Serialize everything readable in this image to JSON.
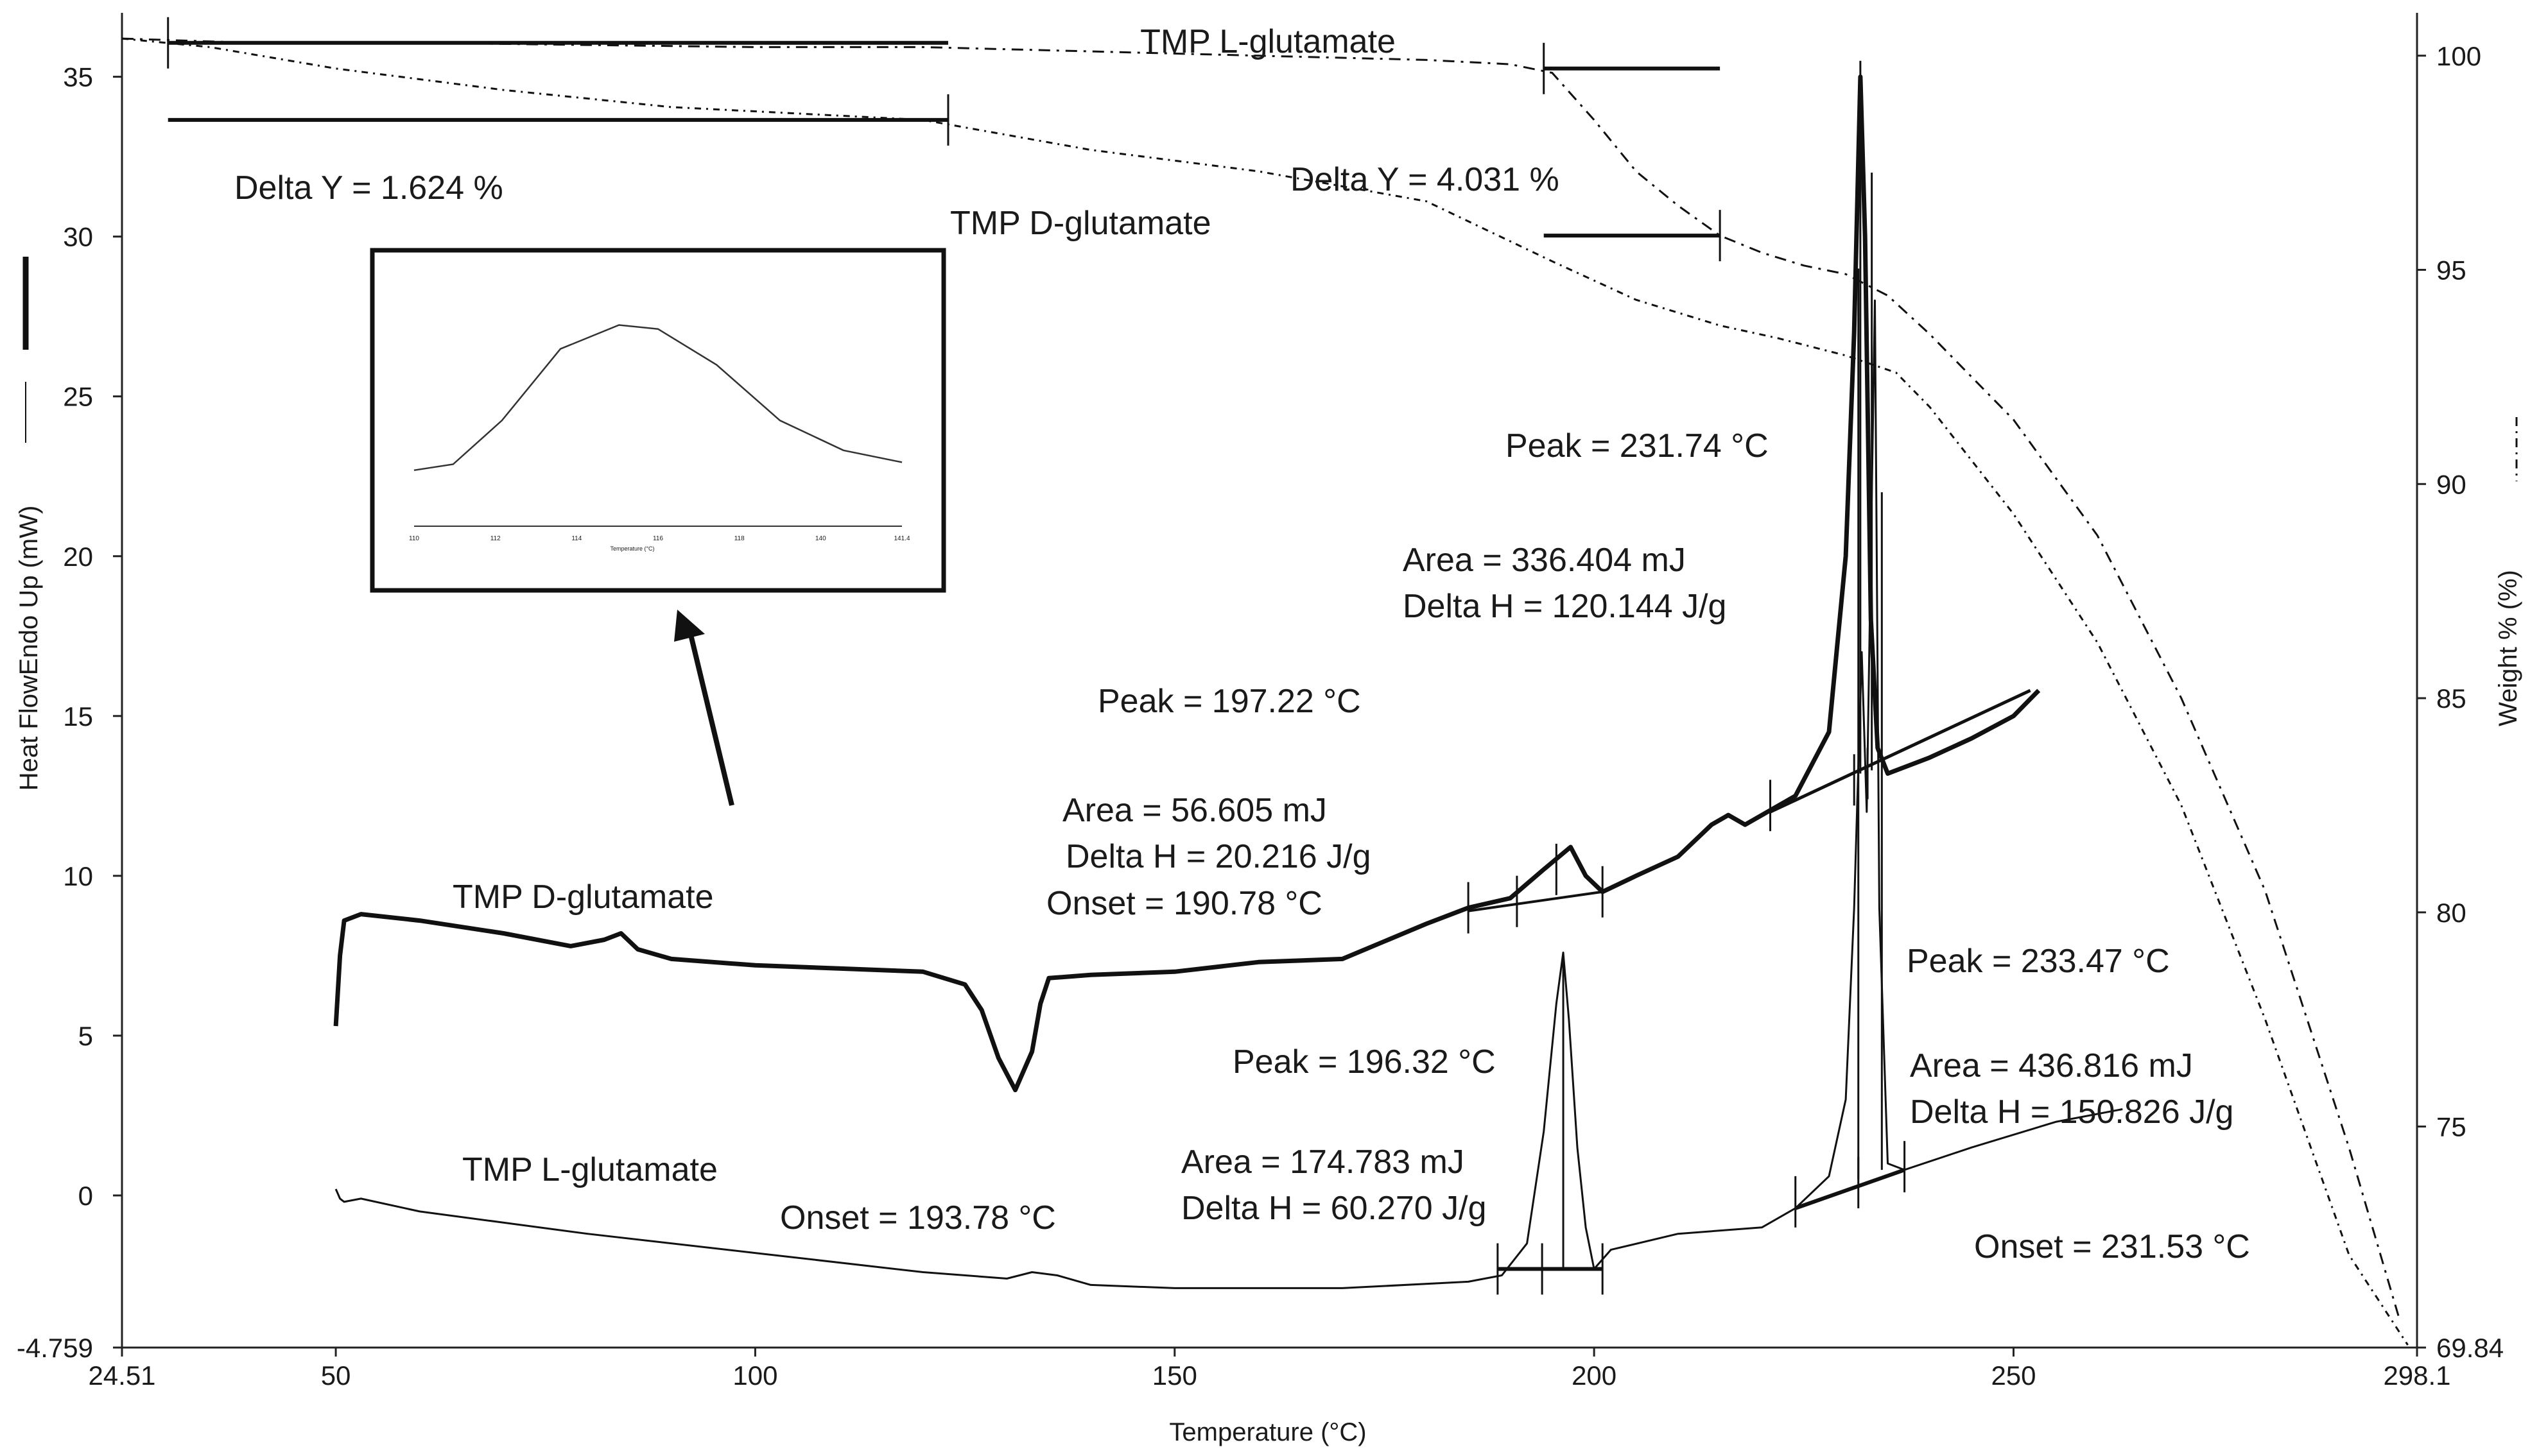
{
  "chart_data": {
    "type": "line",
    "xlabel": "Temperature (°C)",
    "ylabel_left": "Heat FlowEndo Up (mW)",
    "ylabel_right": "Weight % (%)",
    "xlim": [
      24.51,
      298.1
    ],
    "ylim_left": [
      -4.759,
      37
    ],
    "ylim_right": [
      69.84,
      101
    ],
    "x_ticks": [
      "24.51",
      "50",
      "100",
      "150",
      "200",
      "250",
      "298.1"
    ],
    "y_left_ticks": [
      "-4.759",
      "0",
      "5",
      "10",
      "15",
      "20",
      "25",
      "30",
      "35"
    ],
    "y_right_ticks": [
      "69.84",
      "75",
      "80",
      "85",
      "90",
      "95",
      "100"
    ],
    "grid": false,
    "series": [
      {
        "name": "TMP D-glutamate",
        "axis": "left",
        "style": "solid-thick",
        "points": [
          [
            50,
            5.3
          ],
          [
            50.5,
            7.5
          ],
          [
            51,
            8.6
          ],
          [
            53,
            8.8
          ],
          [
            60,
            8.6
          ],
          [
            70,
            8.2
          ],
          [
            78,
            7.8
          ],
          [
            82,
            8.0
          ],
          [
            84,
            8.2
          ],
          [
            86,
            7.7
          ],
          [
            90,
            7.4
          ],
          [
            100,
            7.2
          ],
          [
            110,
            7.1
          ],
          [
            120,
            7.0
          ],
          [
            125,
            6.6
          ],
          [
            127,
            5.8
          ],
          [
            129,
            4.3
          ],
          [
            131,
            3.3
          ],
          [
            133,
            4.5
          ],
          [
            134,
            6.0
          ],
          [
            135,
            6.8
          ],
          [
            140,
            6.9
          ],
          [
            150,
            7.0
          ],
          [
            160,
            7.3
          ],
          [
            170,
            7.4
          ],
          [
            180,
            8.5
          ],
          [
            185,
            9.0
          ],
          [
            190,
            9.3
          ],
          [
            194,
            10.2
          ],
          [
            197.2,
            10.9
          ],
          [
            199,
            10.0
          ],
          [
            201,
            9.5
          ],
          [
            205,
            10.0
          ],
          [
            210,
            10.6
          ],
          [
            214,
            11.6
          ],
          [
            216,
            11.9
          ],
          [
            218,
            11.6
          ],
          [
            220,
            11.9
          ],
          [
            224,
            12.5
          ],
          [
            228,
            14.5
          ],
          [
            230,
            20.0
          ],
          [
            231,
            27.0
          ],
          [
            231.74,
            35.0
          ],
          [
            232.3,
            30.0
          ],
          [
            233,
            18.0
          ],
          [
            233.8,
            14.0
          ],
          [
            235,
            13.2
          ],
          [
            240,
            13.7
          ],
          [
            245,
            14.3
          ],
          [
            250,
            15.0
          ],
          [
            253,
            15.8
          ]
        ]
      },
      {
        "name": "TMP L-glutamate",
        "axis": "left",
        "style": "solid-thin",
        "points": [
          [
            50,
            0.2
          ],
          [
            50.5,
            -0.1
          ],
          [
            51,
            -0.2
          ],
          [
            53,
            -0.1
          ],
          [
            60,
            -0.5
          ],
          [
            80,
            -1.2
          ],
          [
            100,
            -1.8
          ],
          [
            120,
            -2.4
          ],
          [
            130,
            -2.6
          ],
          [
            133,
            -2.4
          ],
          [
            136,
            -2.5
          ],
          [
            140,
            -2.8
          ],
          [
            150,
            -2.9
          ],
          [
            170,
            -2.9
          ],
          [
            185,
            -2.7
          ],
          [
            189,
            -2.5
          ],
          [
            192,
            -1.5
          ],
          [
            194,
            2.0
          ],
          [
            195.5,
            6.0
          ],
          [
            196.32,
            7.6
          ],
          [
            197,
            5.5
          ],
          [
            198,
            1.5
          ],
          [
            199,
            -1.0
          ],
          [
            200,
            -2.3
          ],
          [
            202,
            -1.7
          ],
          [
            210,
            -1.2
          ],
          [
            220,
            -1.0
          ],
          [
            224,
            -0.4
          ],
          [
            228,
            0.6
          ],
          [
            230,
            3.0
          ],
          [
            231,
            9.0
          ],
          [
            231.9,
            17.0
          ],
          [
            232.5,
            12.0
          ],
          [
            233.47,
            28.0
          ],
          [
            234,
            9.0
          ],
          [
            235,
            1.0
          ],
          [
            237,
            0.8
          ],
          [
            245,
            1.5
          ],
          [
            255,
            2.3
          ],
          [
            263,
            2.7
          ]
        ]
      },
      {
        "name": "TMP L-glutamate",
        "axis": "right",
        "style": "dash-dot",
        "points": [
          [
            24.51,
            100.4
          ],
          [
            40,
            100.3
          ],
          [
            60,
            100.3
          ],
          [
            80,
            100.25
          ],
          [
            100,
            100.2
          ],
          [
            120,
            100.2
          ],
          [
            140,
            100.1
          ],
          [
            160,
            100.0
          ],
          [
            180,
            99.9
          ],
          [
            190,
            99.8
          ],
          [
            195,
            99.6
          ],
          [
            200,
            98.5
          ],
          [
            205,
            97.3
          ],
          [
            210,
            96.5
          ],
          [
            215,
            95.8
          ],
          [
            220,
            95.4
          ],
          [
            225,
            95.1
          ],
          [
            230,
            94.9
          ],
          [
            235,
            94.4
          ],
          [
            240,
            93.5
          ],
          [
            250,
            91.5
          ],
          [
            260,
            88.8
          ],
          [
            270,
            85.0
          ],
          [
            280,
            80.5
          ],
          [
            290,
            74.5
          ],
          [
            296,
            70.5
          ]
        ]
      },
      {
        "name": "TMP D-glutamate",
        "axis": "right",
        "style": "dash-dot-thin",
        "points": [
          [
            24.51,
            100.4
          ],
          [
            35,
            100.2
          ],
          [
            50,
            99.7
          ],
          [
            70,
            99.2
          ],
          [
            90,
            98.8
          ],
          [
            110,
            98.6
          ],
          [
            120,
            98.5
          ],
          [
            140,
            97.8
          ],
          [
            160,
            97.3
          ],
          [
            180,
            96.6
          ],
          [
            195,
            95.2
          ],
          [
            205,
            94.3
          ],
          [
            215,
            93.7
          ],
          [
            222,
            93.4
          ],
          [
            230,
            93.0
          ],
          [
            236,
            92.6
          ],
          [
            240,
            91.8
          ],
          [
            250,
            89.3
          ],
          [
            260,
            86.3
          ],
          [
            270,
            82.5
          ],
          [
            280,
            77.5
          ],
          [
            290,
            72.0
          ],
          [
            297,
            69.9
          ]
        ]
      }
    ],
    "annotations": [
      {
        "text": "TMP L-glutamate",
        "target": "weight-L-label"
      },
      {
        "text": "Delta Y = 1.624 %",
        "target": "weight-D-step"
      },
      {
        "text": "Delta Y = 4.031 %",
        "target": "weight-L-step"
      },
      {
        "text": "TMP D-glutamate",
        "target": "weight-D-label"
      },
      {
        "text": "Peak = 231.74 °C"
      },
      {
        "text": "Area = 336.404 mJ"
      },
      {
        "text": "Delta H = 120.144 J/g"
      },
      {
        "text": "Peak = 197.22 °C"
      },
      {
        "text": "Area = 56.605 mJ"
      },
      {
        "text": "Delta H = 20.216 J/g"
      },
      {
        "text": "Onset = 190.78 °C"
      },
      {
        "text": "TMP D-glutamate",
        "target": "dsc-D-label"
      },
      {
        "text": "Peak = 233.47 °C"
      },
      {
        "text": "Peak = 196.32 °C"
      },
      {
        "text": "Area = 436.816 mJ"
      },
      {
        "text": "Delta H = 150.826 J/g"
      },
      {
        "text": "TMP L-glutamate",
        "target": "dsc-L-label"
      },
      {
        "text": "Area = 174.783 mJ"
      },
      {
        "text": "Onset = 193.78 °C"
      },
      {
        "text": "Delta H = 60.270 J/g"
      },
      {
        "text": "Onset = 231.53 °C"
      }
    ],
    "inset": {
      "x_ticks": [
        "110",
        "112",
        "114",
        "116",
        "118",
        "140",
        "141.4"
      ],
      "xlabel": "Temperature (°C)"
    }
  }
}
